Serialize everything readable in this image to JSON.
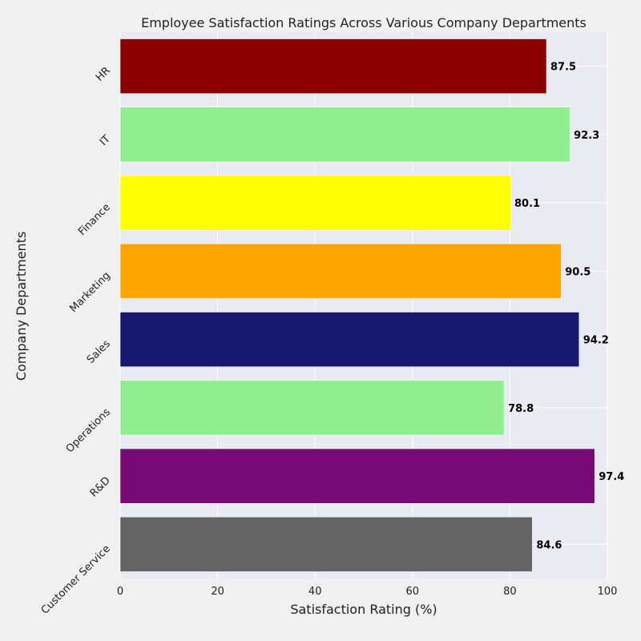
{
  "chart_data": {
    "type": "bar",
    "orientation": "horizontal",
    "title": "Employee Satisfaction Ratings Across Various Company Departments",
    "xlabel": "Satisfaction Rating (%)",
    "ylabel": "Company Departments",
    "xlim": [
      0,
      100
    ],
    "x_ticks": [
      0,
      20,
      40,
      60,
      80,
      100
    ],
    "grid": true,
    "categories": [
      "HR",
      "IT",
      "Finance",
      "Marketing",
      "Sales",
      "Operations",
      "R&D",
      "Customer Service"
    ],
    "values": [
      87.5,
      92.3,
      80.1,
      90.5,
      94.2,
      78.8,
      97.4,
      84.6
    ],
    "value_labels": [
      "87.5",
      "92.3",
      "80.1",
      "90.5",
      "94.2",
      "78.8",
      "97.4",
      "84.6"
    ],
    "colors": [
      "#8b0000",
      "#90ee90",
      "#ffff00",
      "#ffa500",
      "#191970",
      "#90ee90",
      "#770a74",
      "#636363"
    ]
  },
  "style": {
    "plot_background": "#eaeaf2",
    "page_background": "#f0f0f0",
    "grid_color": "#ffffff"
  }
}
